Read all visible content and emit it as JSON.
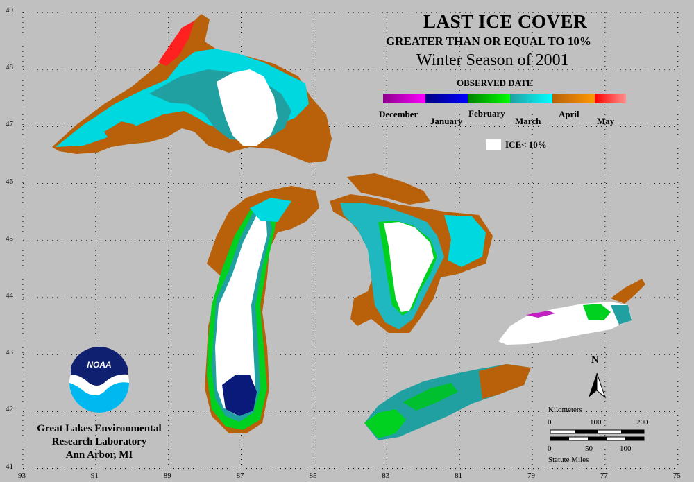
{
  "title": {
    "line1": "LAST ICE COVER",
    "line2": "GREATER THAN OR EQUAL TO 10%",
    "line3": "Winter Season of 2001"
  },
  "legend": {
    "heading": "OBSERVED DATE",
    "months": [
      {
        "label": "December",
        "color_start": "#8b008b",
        "color_end": "#ff00ff"
      },
      {
        "label": "January",
        "color_start": "#000080",
        "color_end": "#0000ff"
      },
      {
        "label": "February",
        "color_start": "#008000",
        "color_end": "#00ff00"
      },
      {
        "label": "March",
        "color_start": "#20a0a0",
        "color_end": "#00ffff"
      },
      {
        "label": "April",
        "color_start": "#b8600a",
        "color_end": "#ff9900"
      },
      {
        "label": "May",
        "color_start": "#ff0000",
        "color_end": "#ff9090"
      }
    ],
    "ice_less_label": "ICE< 10%"
  },
  "latitudes": [
    "49",
    "48",
    "47",
    "46",
    "45",
    "44",
    "43",
    "42",
    "41"
  ],
  "longitudes": [
    "93",
    "91",
    "89",
    "87",
    "85",
    "83",
    "81",
    "79",
    "77",
    "75"
  ],
  "organization": {
    "line1": "Great Lakes Environmental",
    "line2": "Research Laboratory",
    "line3": "Ann Arbor, MI"
  },
  "logo_text": "NOAA",
  "north_arrow_label": "N",
  "scale": {
    "km_label": "Kilometers",
    "km_ticks": [
      "0",
      "100",
      "200"
    ],
    "mi_label": "Statute Miles",
    "mi_ticks": [
      "0",
      "50",
      "100"
    ]
  },
  "colors": {
    "background": "#c0c0c0",
    "grid": "#000000",
    "ice_low": "#ffffff"
  }
}
